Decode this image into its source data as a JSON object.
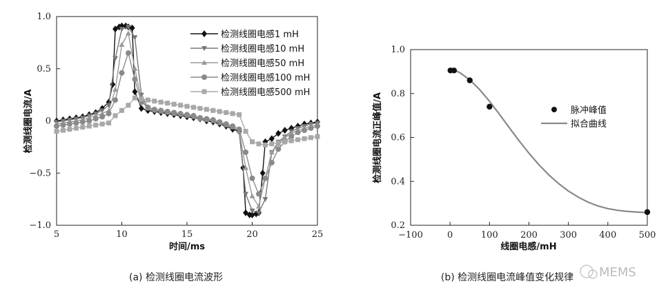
{
  "chart_data": [
    {
      "type": "line",
      "caption": "(a) 检测线圈电流波形",
      "xlabel": "时间/ms",
      "ylabel": "检测线圈电流/A",
      "xlim": [
        5,
        25
      ],
      "ylim": [
        -1.0,
        1.0
      ],
      "xticks": [
        "5",
        "10",
        "15",
        "20",
        "25"
      ],
      "yticks": [
        "−1.0",
        "−0.5",
        "0",
        "0.5",
        "1.0"
      ],
      "legend_position": "top-right",
      "series": [
        {
          "name": "检测线圈电感1 mH",
          "marker": "diamond",
          "color": "#111111",
          "x": [
            5,
            5.5,
            6,
            6.5,
            7,
            7.5,
            8,
            8.5,
            9,
            9.3,
            9.5,
            9.8,
            10,
            10.3,
            10.5,
            10.8,
            11,
            11.5,
            12,
            12.5,
            13,
            13.5,
            14,
            14.5,
            15,
            15.5,
            16,
            16.5,
            17,
            17.5,
            18,
            18.5,
            19,
            19.3,
            19.5,
            19.8,
            20,
            20.3,
            20.5,
            20.8,
            21,
            21.5,
            22,
            22.5,
            23,
            23.5,
            24,
            24.5,
            25
          ],
          "y": [
            0,
            0.01,
            0.02,
            0.03,
            0.04,
            0.06,
            0.08,
            0.12,
            0.18,
            0.35,
            0.88,
            0.9,
            0.91,
            0.91,
            0.9,
            0.89,
            0.28,
            0.12,
            0.1,
            0.09,
            0.08,
            0.07,
            0.06,
            0.05,
            0.04,
            0.03,
            0.02,
            0.0,
            -0.01,
            -0.03,
            -0.05,
            -0.08,
            -0.1,
            -0.45,
            -0.88,
            -0.9,
            -0.9,
            -0.89,
            -0.88,
            -0.5,
            -0.2,
            -0.17,
            -0.12,
            -0.09,
            -0.07,
            -0.05,
            -0.03,
            -0.02,
            -0.01
          ]
        },
        {
          "name": "检测线圈电感10 mH",
          "marker": "triangle-down",
          "color": "#777777",
          "x": [
            5,
            5.5,
            6,
            6.5,
            7,
            7.5,
            8,
            8.5,
            9,
            9.5,
            10,
            10.5,
            11,
            11.5,
            12,
            12.5,
            13,
            13.5,
            14,
            14.5,
            15,
            15.5,
            16,
            16.5,
            17,
            17.5,
            18,
            18.5,
            19,
            19.5,
            20,
            20.5,
            21,
            21.5,
            22,
            22.5,
            23,
            23.5,
            24,
            24.5,
            25
          ],
          "y": [
            -0.01,
            0,
            0.01,
            0.02,
            0.03,
            0.05,
            0.07,
            0.1,
            0.15,
            0.6,
            0.88,
            0.9,
            0.8,
            0.25,
            0.12,
            0.1,
            0.09,
            0.08,
            0.07,
            0.06,
            0.05,
            0.04,
            0.02,
            0.01,
            0,
            -0.02,
            -0.04,
            -0.06,
            -0.1,
            -0.7,
            -0.86,
            -0.88,
            -0.75,
            -0.3,
            -0.2,
            -0.15,
            -0.1,
            -0.07,
            -0.05,
            -0.03,
            -0.02
          ]
        },
        {
          "name": "检测线圈电感50 mH",
          "marker": "triangle-up",
          "color": "#999999",
          "x": [
            5,
            5.5,
            6,
            6.5,
            7,
            7.5,
            8,
            8.5,
            9,
            9.5,
            10,
            10.5,
            11,
            11.5,
            12,
            12.5,
            13,
            13.5,
            14,
            14.5,
            15,
            15.5,
            16,
            16.5,
            17,
            17.5,
            18,
            18.5,
            19,
            19.5,
            20,
            20.5,
            21,
            21.5,
            22,
            22.5,
            23,
            23.5,
            24,
            24.5,
            25
          ],
          "y": [
            -0.03,
            -0.02,
            -0.01,
            0,
            0.01,
            0.03,
            0.05,
            0.07,
            0.1,
            0.3,
            0.73,
            0.84,
            0.5,
            0.2,
            0.12,
            0.1,
            0.09,
            0.08,
            0.07,
            0.06,
            0.05,
            0.04,
            0.02,
            0.01,
            0,
            -0.02,
            -0.04,
            -0.06,
            -0.1,
            -0.45,
            -0.72,
            -0.82,
            -0.55,
            -0.3,
            -0.22,
            -0.16,
            -0.12,
            -0.09,
            -0.07,
            -0.05,
            -0.04
          ]
        },
        {
          "name": "检测线圈电感100 mH",
          "marker": "circle",
          "color": "#8a8a8a",
          "x": [
            5,
            5.5,
            6,
            6.5,
            7,
            7.5,
            8,
            8.5,
            9,
            9.5,
            10,
            10.5,
            11,
            11.5,
            12,
            12.5,
            13,
            13.5,
            14,
            14.5,
            15,
            15.5,
            16,
            16.5,
            17,
            17.5,
            18,
            18.5,
            19,
            19.5,
            20,
            20.5,
            21,
            21.5,
            22,
            22.5,
            23,
            23.5,
            24,
            24.5,
            25
          ],
          "y": [
            -0.05,
            -0.04,
            -0.03,
            -0.02,
            -0.01,
            0,
            0.02,
            0.04,
            0.07,
            0.2,
            0.46,
            0.65,
            0.4,
            0.18,
            0.13,
            0.11,
            0.1,
            0.09,
            0.08,
            0.07,
            0.06,
            0.05,
            0.03,
            0.02,
            0.01,
            -0.01,
            -0.03,
            -0.05,
            -0.08,
            -0.3,
            -0.55,
            -0.7,
            -0.55,
            -0.4,
            -0.27,
            -0.2,
            -0.15,
            -0.11,
            -0.09,
            -0.07,
            -0.05
          ]
        },
        {
          "name": "检测线圈电感500 mH",
          "marker": "square",
          "color": "#a8a8a8",
          "x": [
            5,
            5.5,
            6,
            6.5,
            7,
            7.5,
            8,
            8.5,
            9,
            9.5,
            10,
            10.5,
            11,
            11.5,
            12,
            12.5,
            13,
            13.5,
            14,
            14.5,
            15,
            15.5,
            16,
            16.5,
            17,
            17.5,
            18,
            18.5,
            19,
            19.5,
            20,
            20.5,
            21,
            21.5,
            22,
            22.5,
            23,
            23.5,
            24,
            24.5,
            25
          ],
          "y": [
            -0.1,
            -0.09,
            -0.08,
            -0.07,
            -0.06,
            -0.05,
            -0.04,
            -0.03,
            -0.02,
            0.05,
            0.1,
            0.15,
            0.22,
            0.21,
            0.2,
            0.19,
            0.18,
            0.17,
            0.16,
            0.15,
            0.14,
            0.13,
            0.12,
            0.11,
            0.1,
            0.09,
            0.08,
            0.07,
            0.06,
            -0.1,
            -0.2,
            -0.22,
            -0.23,
            -0.22,
            -0.21,
            -0.2,
            -0.19,
            -0.18,
            -0.17,
            -0.16,
            -0.15
          ]
        }
      ]
    },
    {
      "type": "scatter",
      "caption": "(b) 检测线圈电流峰值变化规律",
      "xlabel": "线圈电感/mH",
      "ylabel": "检测线圈电流正峰值/A",
      "xlim": [
        -100,
        500
      ],
      "ylim": [
        0.2,
        1.0
      ],
      "xticks": [
        "−100",
        "0",
        "100",
        "200",
        "300",
        "400",
        "500"
      ],
      "yticks": [
        "0.2",
        "0.4",
        "0.6",
        "0.8",
        "1.0"
      ],
      "legend_position": "top-right",
      "series": [
        {
          "name": "脉冲峰值",
          "style": "markers",
          "color": "#111111",
          "x": [
            1,
            10,
            50,
            100,
            500
          ],
          "y": [
            0.905,
            0.905,
            0.86,
            0.74,
            0.26
          ]
        },
        {
          "name": "拟合曲线",
          "style": "line",
          "color": "#888888",
          "x": [
            0,
            25,
            50,
            75,
            100,
            125,
            150,
            175,
            200,
            225,
            250,
            275,
            300,
            325,
            350,
            375,
            400,
            425,
            450,
            475,
            500
          ],
          "y": [
            0.915,
            0.895,
            0.862,
            0.818,
            0.765,
            0.706,
            0.645,
            0.585,
            0.528,
            0.476,
            0.43,
            0.39,
            0.356,
            0.328,
            0.305,
            0.288,
            0.276,
            0.268,
            0.263,
            0.26,
            0.258
          ]
        }
      ]
    }
  ],
  "watermark": "MEMS"
}
